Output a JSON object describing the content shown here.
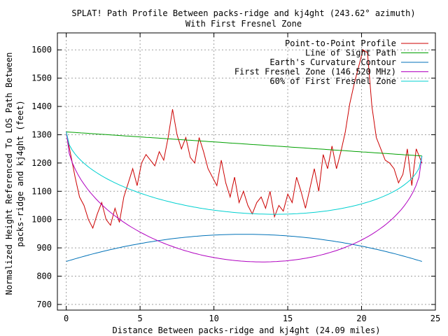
{
  "chart_data": {
    "type": "line",
    "title": "SPLAT! Path Profile Between packs-ridge and kj4ght (243.62° azimuth)",
    "subtitle": "With First Fresnel Zone",
    "xlabel": "Distance Between packs-ridge and kj4ght (24.09 miles)",
    "ylabel_line1": "Normalized Height Referenced To LOS Path Between",
    "ylabel_line2": "packs-ridge and kj4ght (feet)",
    "xlim": [
      -0.6,
      25
    ],
    "ylim": [
      680,
      1660
    ],
    "x_ticks": [
      0,
      5,
      10,
      15,
      20,
      25
    ],
    "x_tick_labels": [
      "0",
      "5",
      "10",
      "15",
      "20",
      "25"
    ],
    "y_ticks": [
      700,
      800,
      900,
      1000,
      1100,
      1200,
      1300,
      1400,
      1500,
      1600
    ],
    "y_tick_labels": [
      "700",
      "800",
      "900",
      "1000",
      "1100",
      "1200",
      "1300",
      "1400",
      "1500",
      "1600"
    ],
    "grid": true,
    "legend_position": "top-right",
    "path_length_miles": 24.09,
    "series": [
      {
        "name": "Point-to-Point Profile",
        "color": "#cc0000",
        "x": [
          0,
          0.3,
          0.6,
          0.9,
          1.2,
          1.5,
          1.8,
          2.1,
          2.4,
          2.7,
          3.0,
          3.3,
          3.6,
          3.9,
          4.2,
          4.5,
          4.8,
          5.1,
          5.4,
          5.7,
          6.0,
          6.3,
          6.6,
          6.9,
          7.2,
          7.5,
          7.8,
          8.1,
          8.4,
          8.7,
          9.0,
          9.3,
          9.6,
          9.9,
          10.2,
          10.5,
          10.8,
          11.1,
          11.4,
          11.7,
          12.0,
          12.3,
          12.6,
          12.9,
          13.2,
          13.5,
          13.8,
          14.1,
          14.4,
          14.7,
          15.0,
          15.3,
          15.6,
          15.9,
          16.2,
          16.5,
          16.8,
          17.1,
          17.4,
          17.7,
          18.0,
          18.3,
          18.6,
          18.9,
          19.2,
          19.5,
          19.8,
          20.1,
          20.4,
          20.7,
          21.0,
          21.3,
          21.6,
          21.9,
          22.2,
          22.5,
          22.8,
          23.1,
          23.4,
          23.7,
          24.09
        ],
        "values": [
          1310,
          1230,
          1150,
          1080,
          1050,
          1000,
          970,
          1020,
          1060,
          1000,
          980,
          1040,
          990,
          1080,
          1130,
          1180,
          1120,
          1200,
          1230,
          1210,
          1190,
          1240,
          1210,
          1290,
          1390,
          1300,
          1250,
          1290,
          1220,
          1200,
          1290,
          1240,
          1180,
          1150,
          1120,
          1210,
          1130,
          1080,
          1150,
          1060,
          1100,
          1050,
          1020,
          1060,
          1080,
          1040,
          1100,
          1010,
          1050,
          1030,
          1090,
          1060,
          1150,
          1100,
          1040,
          1110,
          1180,
          1100,
          1230,
          1180,
          1260,
          1180,
          1240,
          1310,
          1410,
          1480,
          1540,
          1600,
          1590,
          1400,
          1290,
          1250,
          1210,
          1200,
          1180,
          1130,
          1160,
          1250,
          1120,
          1250,
          1200
        ]
      },
      {
        "name": "Line of Sight Path",
        "color": "#00a000"
      },
      {
        "name": "Earth's Curvature Contour",
        "color": "#0072b8"
      },
      {
        "name": "First Fresnel Zone (146.520 MHz)",
        "color": "#b000c0"
      },
      {
        "name": "60% of First Fresnel Zone",
        "color": "#00d0d0"
      }
    ],
    "los_start": 1310,
    "los_end": 1225,
    "curvature_ends": 852,
    "curvature_peak": 948,
    "fresnel_depth": 415,
    "fresnel_60_depth": 245
  }
}
